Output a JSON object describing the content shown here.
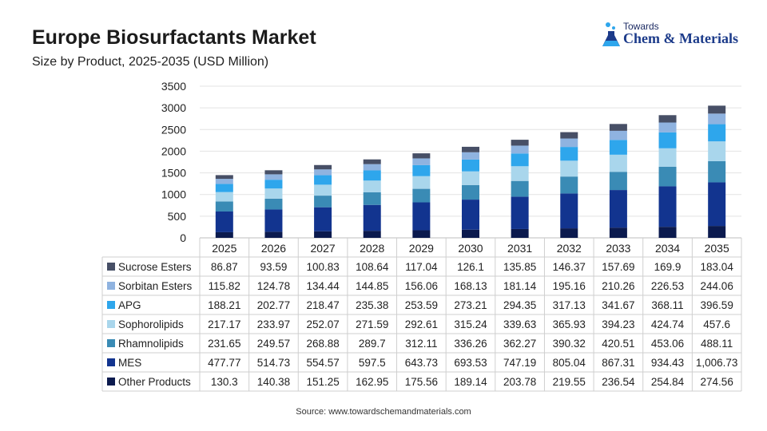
{
  "header": {
    "title": "Europe Biosurfactants Market",
    "subtitle": "Size by Product, 2025-2035 (USD Million)"
  },
  "logo": {
    "top_text": "Towards",
    "main_text": "Chem & Materials"
  },
  "footer": {
    "source": "Source: www.towardschemandmaterials.com"
  },
  "chart_data": {
    "type": "bar",
    "stacked": true,
    "title": "Europe Biosurfactants Market",
    "subtitle": "Size by Product, 2025-2035 (USD Million)",
    "categories": [
      "2025",
      "2026",
      "2027",
      "2028",
      "2029",
      "2030",
      "2031",
      "2032",
      "2033",
      "2034",
      "2035"
    ],
    "ylim": [
      0,
      3500
    ],
    "yticks": [
      0,
      500,
      1000,
      1500,
      2000,
      2500,
      3000,
      3500
    ],
    "grid": true,
    "legend": "data-table",
    "series": [
      {
        "name": "Other Products",
        "color": "#0b1a4e",
        "values": [
          130.3,
          140.38,
          151.25,
          162.95,
          175.56,
          189.14,
          203.78,
          219.55,
          236.54,
          254.84,
          274.56
        ],
        "labels": [
          "130.3",
          "140.38",
          "151.25",
          "162.95",
          "175.56",
          "189.14",
          "203.78",
          "219.55",
          "236.54",
          "254.84",
          "274.56"
        ]
      },
      {
        "name": "MES",
        "color": "#12348f",
        "values": [
          477.77,
          514.73,
          554.57,
          597.5,
          643.73,
          693.53,
          747.19,
          805.04,
          867.31,
          934.43,
          1006.73
        ],
        "labels": [
          "477.77",
          "514.73",
          "554.57",
          "597.5",
          "643.73",
          "693.53",
          "747.19",
          "805.04",
          "867.31",
          "934.43",
          "1,006.73"
        ]
      },
      {
        "name": "Rhamnolipids",
        "color": "#3a8bb5",
        "values": [
          231.65,
          249.57,
          268.88,
          289.7,
          312.11,
          336.26,
          362.27,
          390.32,
          420.51,
          453.06,
          488.11
        ],
        "labels": [
          "231.65",
          "249.57",
          "268.88",
          "289.7",
          "312.11",
          "336.26",
          "362.27",
          "390.32",
          "420.51",
          "453.06",
          "488.11"
        ]
      },
      {
        "name": "Sophorolipids",
        "color": "#a9d6ec",
        "values": [
          217.17,
          233.97,
          252.07,
          271.59,
          292.61,
          315.24,
          339.63,
          365.93,
          394.23,
          424.74,
          457.6
        ],
        "labels": [
          "217.17",
          "233.97",
          "252.07",
          "271.59",
          "292.61",
          "315.24",
          "339.63",
          "365.93",
          "394.23",
          "424.74",
          "457.6"
        ]
      },
      {
        "name": "APG",
        "color": "#2ea6ec",
        "values": [
          188.21,
          202.77,
          218.47,
          235.38,
          253.59,
          273.21,
          294.35,
          317.13,
          341.67,
          368.11,
          396.59
        ],
        "labels": [
          "188.21",
          "202.77",
          "218.47",
          "235.38",
          "253.59",
          "273.21",
          "294.35",
          "317.13",
          "341.67",
          "368.11",
          "396.59"
        ]
      },
      {
        "name": "Sorbitan Esters",
        "color": "#8fb3e0",
        "values": [
          115.82,
          124.78,
          134.44,
          144.85,
          156.06,
          168.13,
          181.14,
          195.16,
          210.26,
          226.53,
          244.06
        ],
        "labels": [
          "115.82",
          "124.78",
          "134.44",
          "144.85",
          "156.06",
          "168.13",
          "181.14",
          "195.16",
          "210.26",
          "226.53",
          "244.06"
        ]
      },
      {
        "name": "Sucrose Esters",
        "color": "#474f66",
        "values": [
          86.87,
          93.59,
          100.83,
          108.64,
          117.04,
          126.1,
          135.85,
          146.37,
          157.69,
          169.9,
          183.04
        ],
        "labels": [
          "86.87",
          "93.59",
          "100.83",
          "108.64",
          "117.04",
          "126.1",
          "135.85",
          "146.37",
          "157.69",
          "169.9",
          "183.04"
        ]
      }
    ]
  }
}
